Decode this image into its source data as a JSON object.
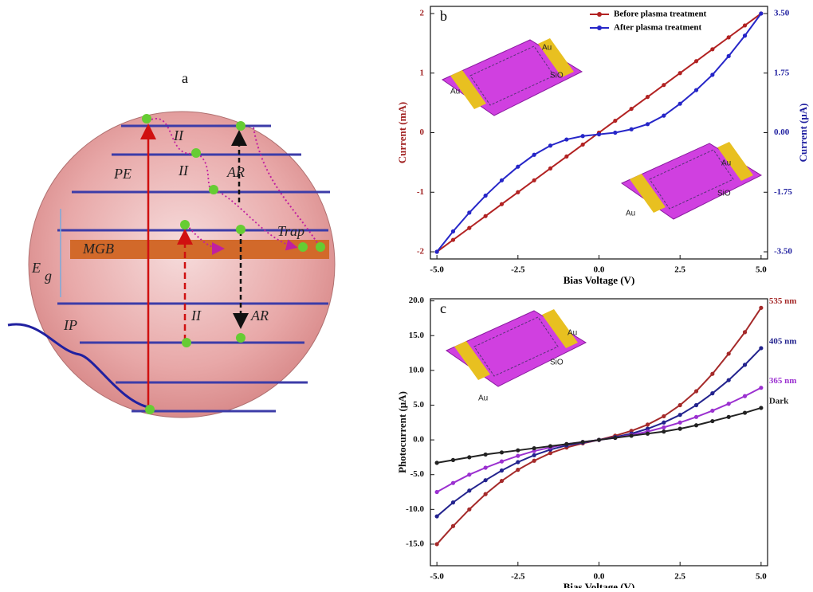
{
  "diagram": {
    "panel": "a",
    "labels": [
      "II",
      "II",
      "AR",
      "PE",
      "MGB",
      "Trap",
      "E",
      "g",
      "IP",
      "II",
      "AR"
    ]
  },
  "chart_data": [
    {
      "type": "line",
      "panel": "b",
      "x_label": "Bias Voltage (V)",
      "y_label": "Current (mA)",
      "y2_label": "Current (μA)",
      "inset_labels": [
        "Au",
        "SiO",
        "Au",
        "Au",
        "SiO",
        "Au"
      ],
      "x": [
        -5,
        -4.5,
        -4,
        -3.5,
        -3,
        -2.5,
        -2,
        -1.5,
        -1,
        -0.5,
        0,
        0.5,
        1,
        1.5,
        2,
        2.5,
        3,
        3.5,
        4,
        4.5,
        5
      ],
      "xlim": [
        -5.2,
        5.2
      ],
      "xticks": [
        {
          "value": -5,
          "label": "-5.0"
        },
        {
          "value": -2.5,
          "label": "-2.5"
        },
        {
          "value": 0,
          "label": "0.0"
        },
        {
          "value": 2.5,
          "label": "2.5"
        },
        {
          "value": 5,
          "label": "5.0"
        }
      ],
      "ylim": [
        -2.12,
        2.12
      ],
      "yticks": [
        -2,
        -1,
        0,
        1,
        2
      ],
      "y2lim": [
        -3.71,
        3.71
      ],
      "y2ticks": [
        {
          "value": -3.5,
          "label": "-3.50"
        },
        {
          "value": -1.75,
          "label": "-1.75"
        },
        {
          "value": 0,
          "label": "0.00"
        },
        {
          "value": 1.75,
          "label": "1.75"
        },
        {
          "value": 3.5,
          "label": "3.50"
        }
      ],
      "series": [
        {
          "name": "Before plasma treatment",
          "color": "#b22222",
          "values": [
            -2,
            -1.8,
            -1.6,
            -1.4,
            -1.2,
            -1,
            -0.8,
            -0.6,
            -0.4,
            -0.2,
            0,
            0.2,
            0.4,
            0.6,
            0.8,
            1,
            1.2,
            1.4,
            1.6,
            1.8,
            2
          ]
        },
        {
          "name": "After plasma  treatment",
          "color": "#2626c8",
          "axis": "y2",
          "values": [
            -3.5,
            -2.9,
            -2.35,
            -1.85,
            -1.4,
            -1.0,
            -0.65,
            -0.38,
            -0.2,
            -0.1,
            -0.05,
            0.0,
            0.1,
            0.25,
            0.5,
            0.85,
            1.25,
            1.7,
            2.25,
            2.85,
            3.5
          ]
        }
      ]
    },
    {
      "type": "line",
      "panel": "c",
      "x_label": "Bias Voltage (V)",
      "y_label": "Photocurrent (μA)",
      "inset_labels": [
        "Au",
        "SiO",
        "Au"
      ],
      "x": [
        -5,
        -4.5,
        -4,
        -3.5,
        -3,
        -2.5,
        -2,
        -1.5,
        -1,
        -0.5,
        0,
        0.5,
        1,
        1.5,
        2,
        2.5,
        3,
        3.5,
        4,
        4.5,
        5
      ],
      "xlim": [
        -5.2,
        5.2
      ],
      "xticks": [
        {
          "value": -5,
          "label": "-5.0"
        },
        {
          "value": -2.5,
          "label": "-2.5"
        },
        {
          "value": 0,
          "label": "0.0"
        },
        {
          "value": 2.5,
          "label": "2.5"
        },
        {
          "value": 5,
          "label": "5.0"
        }
      ],
      "ylim": [
        -18.1,
        20.3
      ],
      "yticks": [
        {
          "value": -15,
          "label": "-15.0"
        },
        {
          "value": -10,
          "label": "-10.0"
        },
        {
          "value": -5,
          "label": "-5.0"
        },
        {
          "value": 0,
          "label": "0.0"
        },
        {
          "value": 5,
          "label": "5.0"
        },
        {
          "value": 10,
          "label": "10.0"
        },
        {
          "value": 15,
          "label": "15.0"
        },
        {
          "value": 20,
          "label": "20.0"
        }
      ],
      "series": [
        {
          "name": "535 nm",
          "color": "#a52a2a",
          "values": [
            -15,
            -12.4,
            -10,
            -7.8,
            -5.9,
            -4.3,
            -3,
            -1.9,
            -1.1,
            -0.5,
            0,
            0.6,
            1.3,
            2.2,
            3.4,
            5,
            7,
            9.5,
            12.4,
            15.5,
            19
          ]
        },
        {
          "name": "405 nm",
          "color": "#23238e",
          "values": [
            -11,
            -9,
            -7.3,
            -5.8,
            -4.4,
            -3.2,
            -2.2,
            -1.4,
            -0.8,
            -0.4,
            0,
            0.4,
            0.9,
            1.6,
            2.5,
            3.6,
            5,
            6.7,
            8.6,
            10.8,
            13.2
          ]
        },
        {
          "name": "365 nm",
          "color": "#9b30d0",
          "values": [
            -7.5,
            -6.2,
            -5,
            -4,
            -3.1,
            -2.3,
            -1.6,
            -1.1,
            -0.6,
            -0.3,
            0,
            0.3,
            0.7,
            1.2,
            1.8,
            2.5,
            3.3,
            4.2,
            5.2,
            6.3,
            7.5
          ]
        },
        {
          "name": "Dark",
          "color": "#222222",
          "values": [
            -3.3,
            -2.9,
            -2.5,
            -2.1,
            -1.8,
            -1.5,
            -1.2,
            -0.9,
            -0.6,
            -0.3,
            0,
            0.3,
            0.6,
            0.9,
            1.2,
            1.6,
            2.1,
            2.7,
            3.3,
            3.9,
            4.6
          ]
        }
      ]
    }
  ]
}
